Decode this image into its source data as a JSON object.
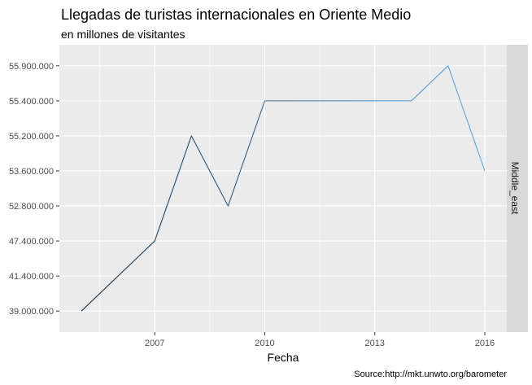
{
  "chart_data": {
    "type": "line",
    "title": "Llegadas de turistas internacionales en Oriente Medio",
    "subtitle": "en millones de visitantes",
    "xlabel": "Fecha",
    "ylabel": "",
    "caption": "Source:http://mkt.unwto.org/barometer",
    "facet_label": "Middle_east",
    "x": [
      2005,
      2006,
      2007,
      2008,
      2009,
      2010,
      2011,
      2012,
      2013,
      2014,
      2015,
      2016
    ],
    "x_ticks": [
      2007,
      2010,
      2013,
      2016
    ],
    "xlim": [
      2004.4,
      2016.6
    ],
    "y_categories": [
      "39.000.000",
      "41.400.000",
      "47.400.000",
      "52.800.000",
      "53.600.000",
      "55.200.000",
      "55.400.000",
      "55.900.000"
    ],
    "y_values": [
      "39.000.000",
      "41.400.000",
      "47.400.000",
      "55.200.000",
      "52.800.000",
      "55.400.000",
      "55.400.000",
      "55.400.000",
      "55.400.000",
      "55.400.000",
      "55.900.000",
      "53.600.000"
    ],
    "grid": true,
    "colors": {
      "panel": "#ebebeb",
      "grid": "#ffffff",
      "strip": "#d9d9d9",
      "line_start": "#132b43",
      "line_end": "#56b1f7"
    }
  }
}
